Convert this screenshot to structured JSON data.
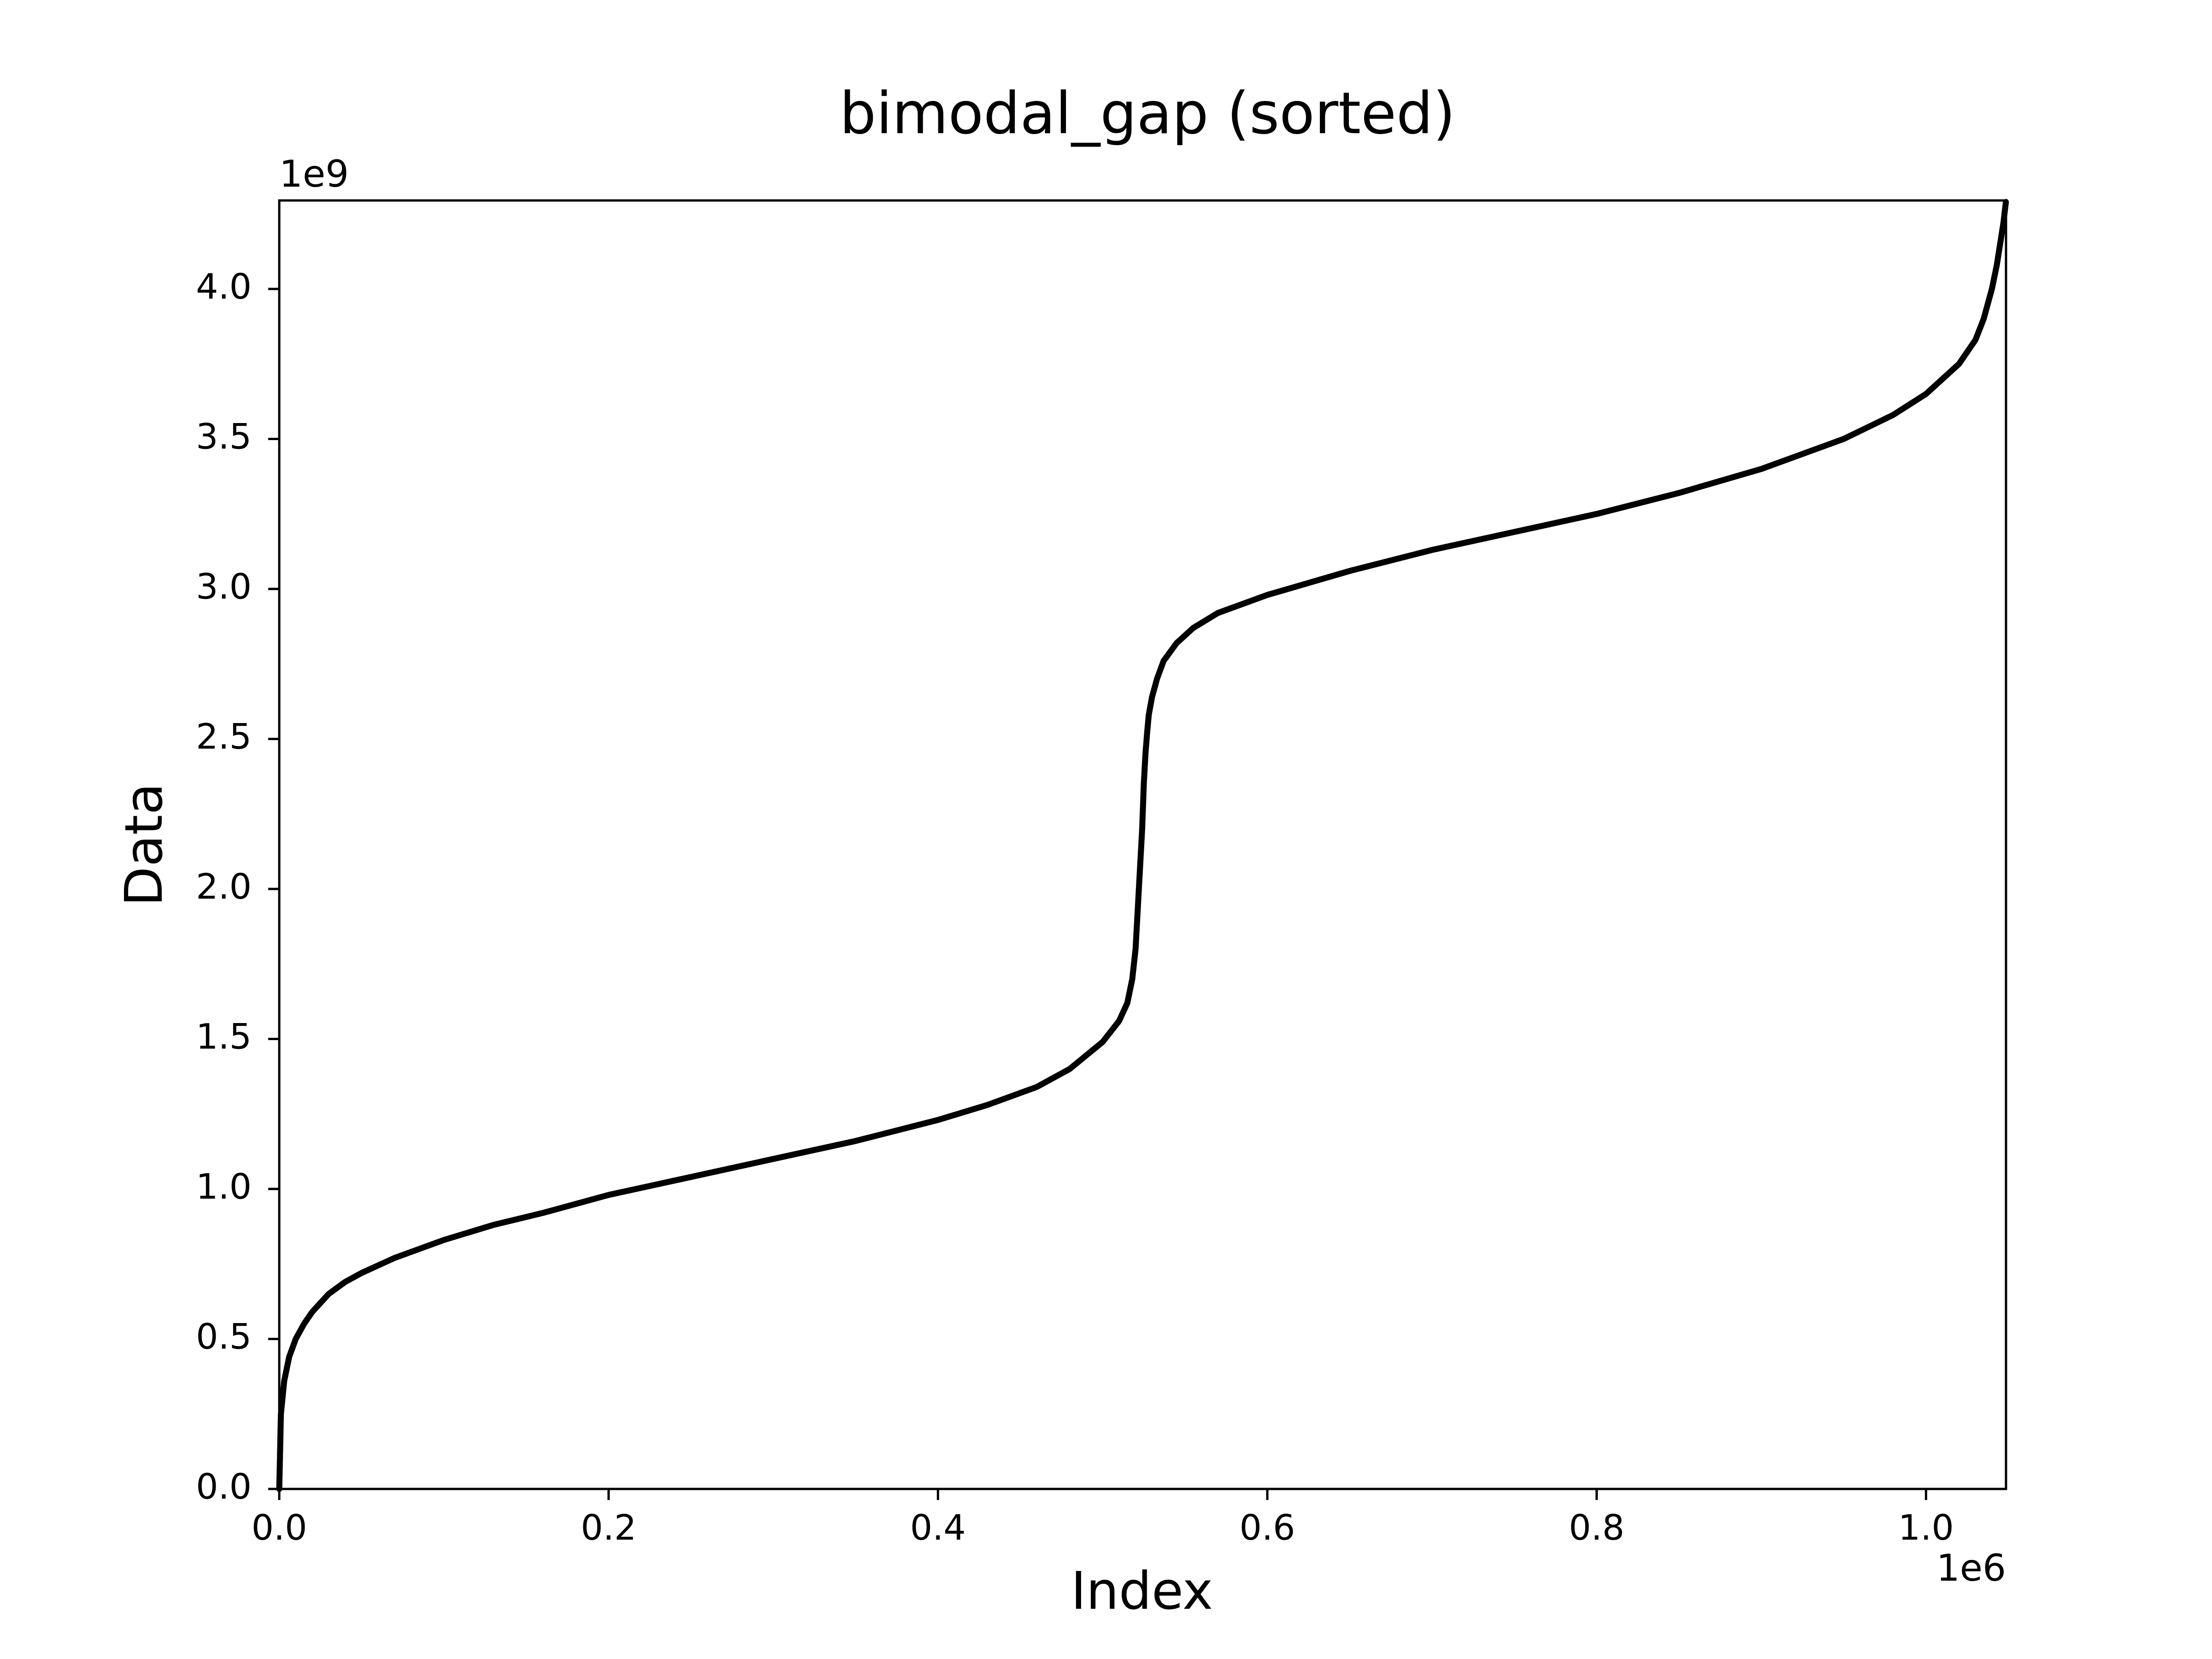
{
  "chart_data": {
    "type": "line",
    "title": "bimodal_gap (sorted)",
    "xlabel": "Index",
    "ylabel": "Data",
    "x_offset_label": "1e6",
    "y_offset_label": "1e9",
    "xlim": [
      0,
      1.048576
    ],
    "ylim": [
      0,
      4.294967296
    ],
    "x_ticks": [
      0.0,
      0.2,
      0.4,
      0.6,
      0.8,
      1.0
    ],
    "x_tick_labels": [
      "0.0",
      "0.2",
      "0.4",
      "0.6",
      "0.8",
      "1.0"
    ],
    "y_ticks": [
      0.0,
      0.5,
      1.0,
      1.5,
      2.0,
      2.5,
      3.0,
      3.5,
      4.0
    ],
    "y_tick_labels": [
      "0.0",
      "0.5",
      "1.0",
      "1.5",
      "2.0",
      "2.5",
      "3.0",
      "3.5",
      "4.0"
    ],
    "grid": false,
    "legend": "none",
    "series": [
      {
        "color": "#000000",
        "x": [
          0.0,
          0.001,
          0.003,
          0.006,
          0.01,
          0.015,
          0.02,
          0.03,
          0.04,
          0.05,
          0.07,
          0.1,
          0.13,
          0.16,
          0.2,
          0.25,
          0.3,
          0.35,
          0.4,
          0.43,
          0.46,
          0.48,
          0.5,
          0.51,
          0.515,
          0.518,
          0.52,
          0.521,
          0.522,
          0.523,
          0.524,
          0.525,
          0.526,
          0.527,
          0.528,
          0.53,
          0.533,
          0.537,
          0.545,
          0.555,
          0.57,
          0.6,
          0.65,
          0.7,
          0.75,
          0.8,
          0.85,
          0.9,
          0.95,
          0.98,
          1.0,
          1.02,
          1.03,
          1.035,
          1.04,
          1.043,
          1.045,
          1.047,
          1.0485
        ],
        "y": [
          0.0,
          0.25,
          0.36,
          0.44,
          0.5,
          0.55,
          0.59,
          0.65,
          0.69,
          0.72,
          0.77,
          0.83,
          0.88,
          0.92,
          0.98,
          1.04,
          1.1,
          1.16,
          1.23,
          1.28,
          1.34,
          1.4,
          1.49,
          1.56,
          1.62,
          1.7,
          1.8,
          1.9,
          2.0,
          2.1,
          2.2,
          2.35,
          2.45,
          2.52,
          2.58,
          2.64,
          2.7,
          2.76,
          2.82,
          2.87,
          2.92,
          2.98,
          3.06,
          3.13,
          3.19,
          3.25,
          3.32,
          3.4,
          3.5,
          3.58,
          3.65,
          3.75,
          3.83,
          3.9,
          4.0,
          4.08,
          4.15,
          4.22,
          4.29
        ]
      }
    ]
  }
}
